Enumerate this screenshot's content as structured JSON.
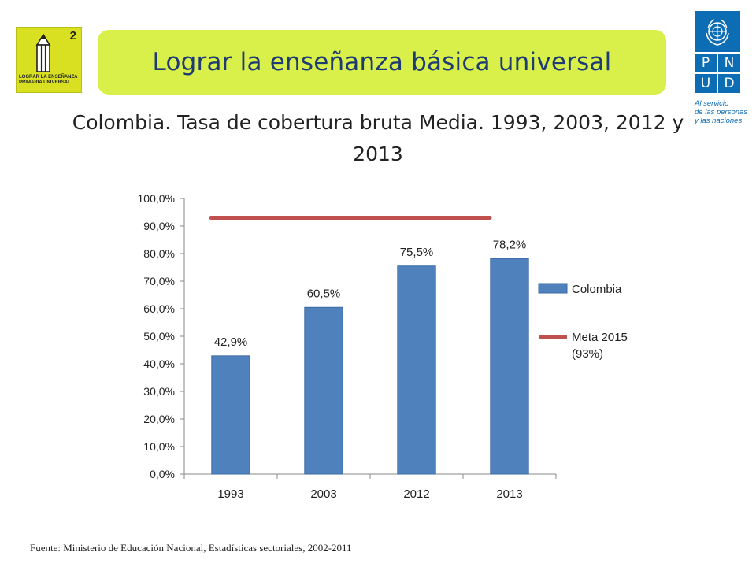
{
  "header": {
    "title": "Lograr la enseñanza básica universal",
    "badge": {
      "number": "2",
      "text": "LOGRAR LA ENSEÑANZA\nPRIMARIA UNIVERSAL",
      "color": "#d9e021"
    },
    "logo": {
      "cells": [
        "P",
        "N",
        "U",
        "D"
      ],
      "tagline": "Al servicio\nde las personas\ny las naciones",
      "color": "#0c6cb4"
    }
  },
  "chart_title": "Colombia. Tasa de cobertura bruta Media. 1993, 2003, 2012 y 2013",
  "chart_data": {
    "type": "bar",
    "title": "Colombia. Tasa de cobertura bruta Media. 1993, 2003, 2012 y 2013",
    "categories": [
      "1993",
      "2003",
      "2012",
      "2013"
    ],
    "series": [
      {
        "name": "Colombia",
        "type": "bar",
        "values": [
          42.9,
          60.5,
          75.5,
          78.2
        ],
        "color": "#4f81bd",
        "labels": [
          "42,9%",
          "60,5%",
          "75,5%",
          "78,2%"
        ]
      },
      {
        "name": "Meta 2015 (93%)",
        "type": "line",
        "values": [
          93,
          93,
          93,
          93
        ],
        "color": "#c0504d"
      }
    ],
    "legend": {
      "entries": [
        "Colombia",
        "Meta 2015\n(93%)"
      ],
      "placement": "right"
    },
    "ylim": [
      0,
      100
    ],
    "yticks": [
      0,
      10,
      20,
      30,
      40,
      50,
      60,
      70,
      80,
      90,
      100
    ],
    "ytick_labels": [
      "0,0%",
      "10,0%",
      "20,0%",
      "30,0%",
      "40,0%",
      "50,0%",
      "60,0%",
      "70,0%",
      "80,0%",
      "90,0%",
      "100,0%"
    ],
    "xlabel": "",
    "ylabel": "",
    "grid": false
  },
  "source": "Fuente: Ministerio de Educación Nacional, Estadísticas sectoriales, 2002-2011"
}
